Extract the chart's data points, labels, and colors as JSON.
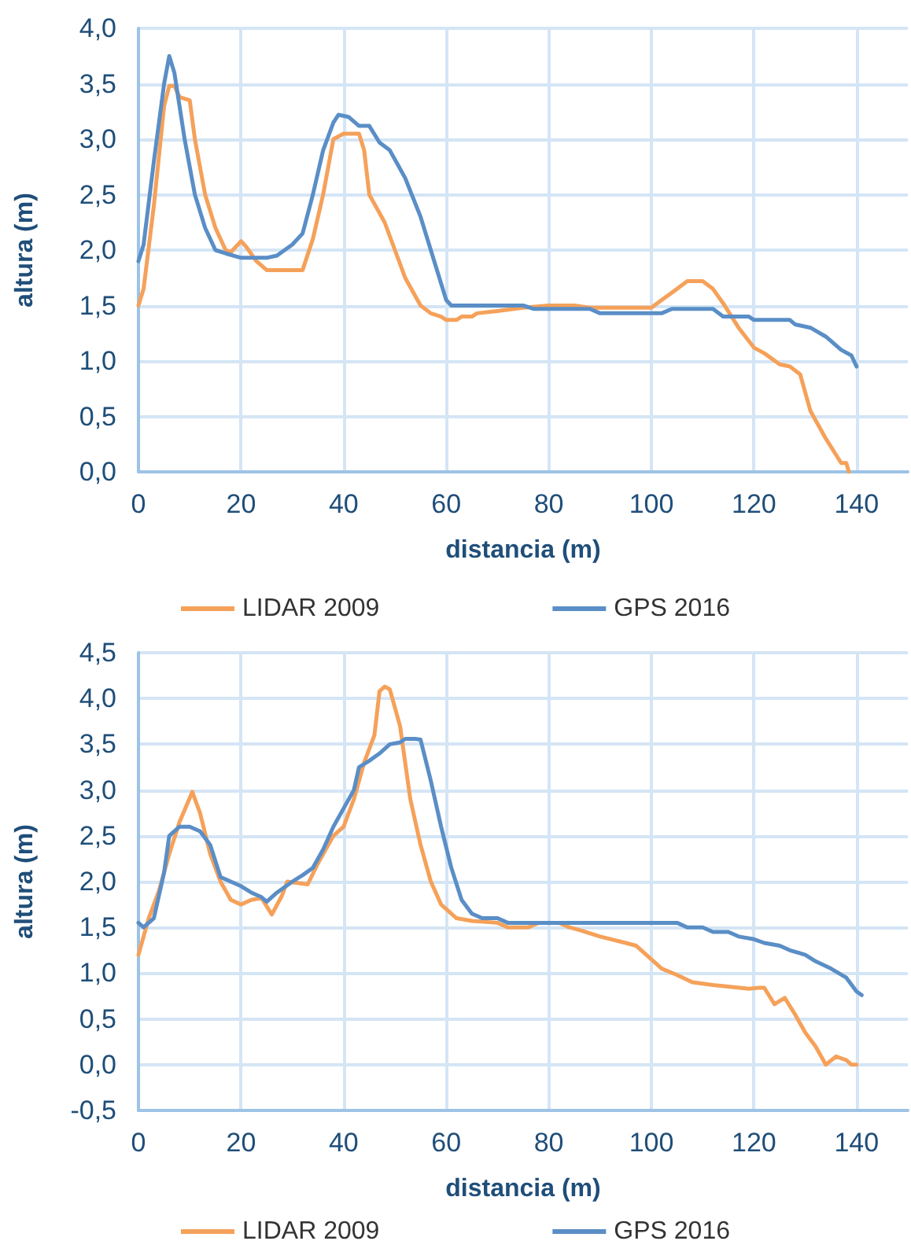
{
  "chart_data": [
    {
      "type": "line",
      "xlabel": "distancia (m)",
      "ylabel": "altura (m)",
      "xlim": [
        0,
        150
      ],
      "xticks": [
        0,
        20,
        40,
        60,
        80,
        100,
        120,
        140
      ],
      "ylim": [
        0,
        4
      ],
      "yticks": [
        {
          "value": 0,
          "label": "0,0"
        },
        {
          "value": 0.5,
          "label": "0,5"
        },
        {
          "value": 1,
          "label": "1,0"
        },
        {
          "value": 1.5,
          "label": "1,5"
        },
        {
          "value": 2,
          "label": "2,0"
        },
        {
          "value": 2.5,
          "label": "2,5"
        },
        {
          "value": 3,
          "label": "3,0"
        },
        {
          "value": 3.5,
          "label": "3,5"
        },
        {
          "value": 4,
          "label": "4,0"
        }
      ],
      "grid": true,
      "legend": "bottom",
      "marker": "none",
      "line_style": "solid",
      "series": [
        {
          "name": "LIDAR 2009",
          "color": "#f5a15a",
          "x": [
            0,
            1,
            3,
            5,
            6,
            7,
            8,
            10,
            11,
            13,
            15,
            17,
            18,
            20,
            21,
            23,
            25,
            30,
            32,
            34,
            36,
            38,
            40,
            43,
            44,
            45,
            48,
            50,
            52,
            55,
            57,
            59,
            60,
            62,
            63,
            65,
            66,
            70,
            75,
            80,
            85,
            88,
            100,
            102,
            105,
            107,
            110,
            112,
            114,
            117,
            120,
            122,
            125,
            127,
            129,
            131,
            134,
            137,
            138,
            138.5
          ],
          "values": [
            1.5,
            1.65,
            2.4,
            3.3,
            3.48,
            3.48,
            3.38,
            3.35,
            3.0,
            2.5,
            2.2,
            2.0,
            1.98,
            2.08,
            2.03,
            1.9,
            1.82,
            1.82,
            1.82,
            2.1,
            2.5,
            3.0,
            3.05,
            3.05,
            2.9,
            2.5,
            2.25,
            2.0,
            1.75,
            1.5,
            1.43,
            1.4,
            1.37,
            1.37,
            1.4,
            1.4,
            1.43,
            1.45,
            1.48,
            1.5,
            1.5,
            1.48,
            1.48,
            1.55,
            1.65,
            1.72,
            1.72,
            1.65,
            1.52,
            1.3,
            1.12,
            1.07,
            0.97,
            0.95,
            0.88,
            0.55,
            0.3,
            0.08,
            0.08,
            0.0
          ]
        },
        {
          "name": "GPS 2016",
          "color": "#5a8ec6",
          "x": [
            0,
            1,
            3,
            5,
            6,
            7,
            9,
            11,
            13,
            15,
            17,
            20,
            25,
            27,
            30,
            32,
            34,
            36,
            38,
            39,
            41,
            43,
            45,
            47,
            49,
            52,
            55,
            58,
            60,
            61,
            75,
            77,
            88,
            90,
            102,
            104,
            112,
            114,
            119,
            120,
            127,
            128,
            131,
            134,
            137,
            139,
            140
          ],
          "values": [
            1.9,
            2.05,
            2.8,
            3.5,
            3.75,
            3.6,
            3.0,
            2.5,
            2.2,
            2.0,
            1.97,
            1.93,
            1.93,
            1.95,
            2.05,
            2.15,
            2.5,
            2.9,
            3.15,
            3.22,
            3.2,
            3.12,
            3.12,
            2.97,
            2.9,
            2.65,
            2.3,
            1.85,
            1.55,
            1.5,
            1.5,
            1.47,
            1.47,
            1.43,
            1.43,
            1.47,
            1.47,
            1.4,
            1.4,
            1.37,
            1.37,
            1.33,
            1.3,
            1.22,
            1.1,
            1.05,
            0.95
          ]
        }
      ]
    },
    {
      "type": "line",
      "xlabel": "distancia (m)",
      "ylabel": "altura (m)",
      "xlim": [
        0,
        150
      ],
      "xticks": [
        0,
        20,
        40,
        60,
        80,
        100,
        120,
        140
      ],
      "ylim": [
        -0.5,
        4.5
      ],
      "yticks": [
        {
          "value": -0.5,
          "label": "-0,5"
        },
        {
          "value": 0,
          "label": "0,0"
        },
        {
          "value": 0.5,
          "label": "0,5"
        },
        {
          "value": 1,
          "label": "1,0"
        },
        {
          "value": 1.5,
          "label": "1,5"
        },
        {
          "value": 2,
          "label": "2,0"
        },
        {
          "value": 2.5,
          "label": "2,5"
        },
        {
          "value": 3,
          "label": "3,0"
        },
        {
          "value": 3.5,
          "label": "3,5"
        },
        {
          "value": 4,
          "label": "4,0"
        },
        {
          "value": 4.5,
          "label": "4,5"
        }
      ],
      "grid": true,
      "legend": "bottom",
      "marker": "none",
      "line_style": "solid",
      "series": [
        {
          "name": "LIDAR 2009",
          "color": "#f5a15a",
          "x": [
            0,
            2,
            4,
            6,
            8,
            10.5,
            12,
            14,
            16,
            18,
            20,
            22,
            24,
            26,
            28,
            29,
            33,
            35,
            38,
            40,
            42,
            44,
            46,
            47,
            48,
            49,
            51,
            53,
            55,
            57,
            59,
            62,
            65,
            70,
            72,
            76,
            78,
            82,
            84,
            86,
            90,
            95,
            97,
            100,
            102,
            105,
            108,
            112,
            119,
            121,
            122,
            124,
            126,
            128,
            130,
            132,
            134,
            136,
            138,
            139,
            140
          ],
          "values": [
            1.2,
            1.6,
            1.9,
            2.3,
            2.65,
            2.98,
            2.75,
            2.3,
            2.0,
            1.8,
            1.75,
            1.8,
            1.82,
            1.64,
            1.85,
            2.0,
            1.97,
            2.2,
            2.5,
            2.6,
            2.9,
            3.3,
            3.6,
            4.08,
            4.13,
            4.1,
            3.7,
            2.9,
            2.4,
            2.0,
            1.75,
            1.6,
            1.57,
            1.55,
            1.5,
            1.5,
            1.55,
            1.55,
            1.5,
            1.47,
            1.4,
            1.33,
            1.3,
            1.15,
            1.05,
            0.98,
            0.9,
            0.87,
            0.83,
            0.84,
            0.84,
            0.66,
            0.73,
            0.55,
            0.35,
            0.2,
            0.0,
            0.09,
            0.05,
            0.0,
            0.0
          ]
        },
        {
          "name": "GPS 2016",
          "color": "#5a8ec6",
          "x": [
            0,
            1,
            3,
            5,
            6,
            8,
            10,
            12,
            14,
            16,
            18,
            20,
            22,
            24,
            25,
            27,
            30,
            32,
            34,
            36,
            38,
            40,
            42,
            43,
            45,
            47,
            49,
            51,
            52,
            54,
            55,
            57,
            59,
            61,
            63,
            65,
            67,
            70,
            72,
            80,
            105,
            107,
            110,
            112,
            115,
            117,
            120,
            122,
            125,
            127,
            130,
            132,
            135,
            138,
            140,
            141
          ],
          "values": [
            1.55,
            1.5,
            1.6,
            2.1,
            2.5,
            2.6,
            2.6,
            2.55,
            2.4,
            2.05,
            2.0,
            1.95,
            1.88,
            1.83,
            1.78,
            1.88,
            2.0,
            2.07,
            2.15,
            2.35,
            2.6,
            2.8,
            3.0,
            3.25,
            3.32,
            3.4,
            3.5,
            3.52,
            3.56,
            3.56,
            3.55,
            3.1,
            2.6,
            2.15,
            1.8,
            1.65,
            1.6,
            1.6,
            1.55,
            1.55,
            1.55,
            1.5,
            1.5,
            1.45,
            1.45,
            1.4,
            1.37,
            1.33,
            1.3,
            1.25,
            1.2,
            1.13,
            1.05,
            0.95,
            0.8,
            0.76
          ]
        }
      ]
    }
  ]
}
